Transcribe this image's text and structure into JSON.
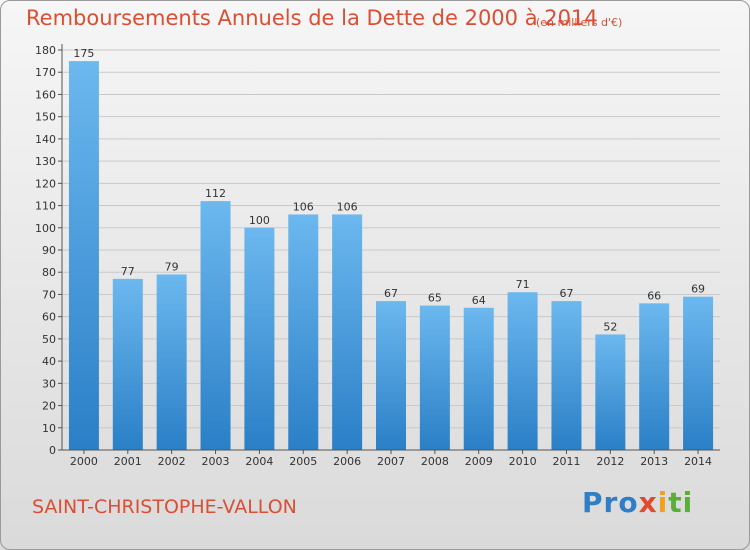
{
  "header": {
    "title": "Remboursements Annuels de la Dette de 2000 à 2014",
    "unit": "(en milliers d'€)"
  },
  "footer": {
    "commune": "SAINT-CHRISTOPHE-VALLON",
    "logo": {
      "p1": "Pro",
      "p2": "x",
      "p3": "i",
      "p4": "ti"
    }
  },
  "colors": {
    "title": "#d94f33",
    "bar_light": "#69b6ee",
    "bar_dark": "#2a80c8",
    "grid": "#c9c9c9",
    "axis": "#555555"
  },
  "chart_data": {
    "type": "bar",
    "title": "Remboursements Annuels de la Dette de 2000 à 2014",
    "subtitle": "(en milliers d'€)",
    "xlabel": "",
    "ylabel": "",
    "categories": [
      "2000",
      "2001",
      "2002",
      "2003",
      "2004",
      "2005",
      "2006",
      "2007",
      "2008",
      "2009",
      "2010",
      "2011",
      "2012",
      "2013",
      "2014"
    ],
    "values": [
      175,
      77,
      79,
      112,
      100,
      106,
      106,
      67,
      65,
      64,
      71,
      67,
      52,
      66,
      69
    ],
    "ylim": [
      0,
      180
    ],
    "yticks": [
      0,
      10,
      20,
      30,
      40,
      50,
      60,
      70,
      80,
      90,
      100,
      110,
      120,
      130,
      140,
      150,
      160,
      170,
      180
    ],
    "grid": true,
    "legend": "none"
  }
}
